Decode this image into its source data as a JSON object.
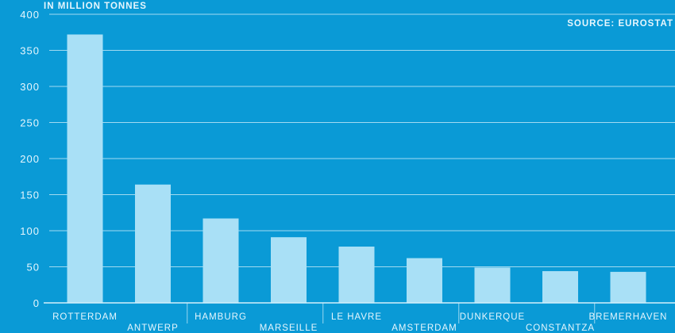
{
  "colors": {
    "background": "#0a9ad6",
    "bar": "#a9e0f6",
    "gridline": "#d4f0fb",
    "text": "#e6f6fd"
  },
  "chart_data": {
    "type": "bar",
    "title": "",
    "unit_label": "IN MILLION TONNES",
    "source": "SOURCE: EUROSTAT",
    "xlabel": "",
    "ylabel": "",
    "ylim": [
      0,
      400
    ],
    "yticks": [
      0,
      50,
      100,
      150,
      200,
      250,
      300,
      350,
      400
    ],
    "grid": true,
    "legend": "none",
    "categories": [
      "ROTTERDAM",
      "ANTWERP",
      "HAMBURG",
      "MARSEILLE",
      "LE HAVRE",
      "AMSTERDAM",
      "DUNKERQUE",
      "CONSTANTZA",
      "BREMERHAVEN"
    ],
    "values": [
      372,
      164,
      117,
      91,
      78,
      62,
      49,
      44,
      43
    ]
  }
}
